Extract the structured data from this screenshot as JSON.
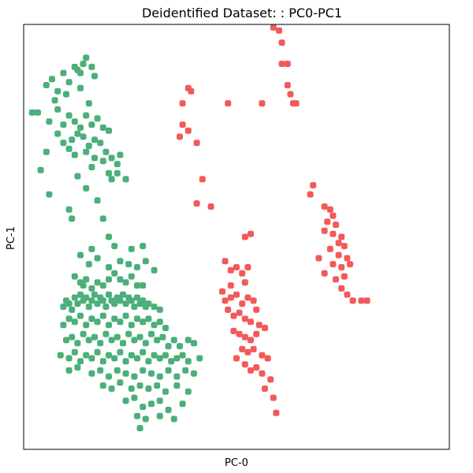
{
  "chart_data": {
    "type": "scatter",
    "title": "Deidentified Dataset: : PC0-PC1",
    "xlabel": "PC-0",
    "ylabel": "PC-1",
    "xlim": [
      -3.0,
      4.5
    ],
    "ylim": [
      -3.0,
      4.0
    ],
    "x_ticks_shown": false,
    "y_ticks_shown": false,
    "grid": false,
    "legend": "none",
    "marker": "rounded-square",
    "series": [
      {
        "color": "#4caf7a",
        "points": [
          [
            -2.6,
            3.0
          ],
          [
            -2.5,
            3.1
          ],
          [
            -2.4,
            2.9
          ],
          [
            -2.3,
            3.2
          ],
          [
            -2.2,
            3.05
          ],
          [
            -2.1,
            3.3
          ],
          [
            -2.05,
            3.25
          ],
          [
            -2.0,
            3.2
          ],
          [
            -1.95,
            3.35
          ],
          [
            -1.9,
            3.45
          ],
          [
            -1.8,
            3.3
          ],
          [
            -1.75,
            3.15
          ],
          [
            -2.45,
            2.75
          ],
          [
            -2.25,
            2.85
          ],
          [
            -2.0,
            2.95
          ],
          [
            -1.85,
            2.7
          ],
          [
            -2.75,
            2.55
          ],
          [
            -2.85,
            2.55
          ],
          [
            -2.55,
            2.4
          ],
          [
            -2.4,
            2.6
          ],
          [
            -2.3,
            2.35
          ],
          [
            -2.2,
            2.5
          ],
          [
            -2.1,
            2.4
          ],
          [
            -2.0,
            2.3
          ],
          [
            -1.9,
            2.5
          ],
          [
            -1.8,
            2.35
          ],
          [
            -1.7,
            2.45
          ],
          [
            -1.6,
            2.3
          ],
          [
            -1.5,
            2.25
          ],
          [
            -2.4,
            2.2
          ],
          [
            -2.3,
            2.05
          ],
          [
            -2.15,
            2.1
          ],
          [
            -2.05,
            2.2
          ],
          [
            -1.95,
            2.15
          ],
          [
            -1.85,
            2.0
          ],
          [
            -1.75,
            2.1
          ],
          [
            -1.65,
            2.05
          ],
          [
            -1.55,
            1.9
          ],
          [
            -2.2,
            1.95
          ],
          [
            -2.1,
            1.85
          ],
          [
            -1.9,
            1.9
          ],
          [
            -1.75,
            1.8
          ],
          [
            -1.6,
            1.75
          ],
          [
            -1.45,
            1.8
          ],
          [
            -1.35,
            1.7
          ],
          [
            -1.3,
            1.85
          ],
          [
            -1.2,
            1.45
          ],
          [
            -2.6,
            1.9
          ],
          [
            -2.7,
            1.6
          ],
          [
            -2.55,
            1.2
          ],
          [
            -2.05,
            1.5
          ],
          [
            -1.9,
            1.3
          ],
          [
            -1.8,
            1.65
          ],
          [
            -1.7,
            1.1
          ],
          [
            -1.5,
            1.55
          ],
          [
            -1.45,
            1.45
          ],
          [
            -1.35,
            1.55
          ],
          [
            -2.2,
            0.95
          ],
          [
            -2.15,
            0.8
          ],
          [
            -1.6,
            0.8
          ],
          [
            -1.5,
            0.5
          ],
          [
            -1.8,
            0.3
          ],
          [
            -2.1,
            -0.15
          ],
          [
            -2.0,
            -0.25
          ],
          [
            -1.95,
            -0.3
          ],
          [
            -1.9,
            -0.2
          ],
          [
            -1.8,
            -0.35
          ],
          [
            -1.7,
            -0.25
          ],
          [
            -1.6,
            -0.3
          ],
          [
            -1.5,
            -0.2
          ],
          [
            -1.4,
            -0.1
          ],
          [
            -1.3,
            -0.2
          ],
          [
            -1.2,
            -0.25
          ],
          [
            -1.1,
            -0.15
          ],
          [
            -1.0,
            -0.3
          ],
          [
            -0.9,
            -0.3
          ],
          [
            -2.3,
            -0.65
          ],
          [
            -2.25,
            -0.55
          ],
          [
            -2.2,
            -0.6
          ],
          [
            -2.15,
            -0.7
          ],
          [
            -2.1,
            -0.5
          ],
          [
            -2.05,
            -0.6
          ],
          [
            -2.0,
            -0.45
          ],
          [
            -1.95,
            -0.55
          ],
          [
            -1.9,
            -0.5
          ],
          [
            -1.85,
            -0.65
          ],
          [
            -1.8,
            -0.55
          ],
          [
            -1.75,
            -0.45
          ],
          [
            -1.7,
            -0.6
          ],
          [
            -1.65,
            -0.5
          ],
          [
            -1.6,
            -0.55
          ],
          [
            -1.55,
            -0.65
          ],
          [
            -1.5,
            -0.45
          ],
          [
            -1.45,
            -0.55
          ],
          [
            -1.4,
            -0.6
          ],
          [
            -1.35,
            -0.5
          ],
          [
            -1.3,
            -0.55
          ],
          [
            -1.25,
            -0.45
          ],
          [
            -1.2,
            -0.6
          ],
          [
            -1.15,
            -0.5
          ],
          [
            -1.1,
            -0.55
          ],
          [
            -1.05,
            -0.65
          ],
          [
            -1.0,
            -0.5
          ],
          [
            -0.95,
            -0.6
          ],
          [
            -0.9,
            -0.55
          ],
          [
            -0.85,
            -0.65
          ],
          [
            -0.8,
            -0.6
          ],
          [
            -0.7,
            -0.65
          ],
          [
            -0.6,
            -0.7
          ],
          [
            -2.3,
            -0.95
          ],
          [
            -2.2,
            -0.85
          ],
          [
            -2.1,
            -0.9
          ],
          [
            -2.0,
            -0.8
          ],
          [
            -1.9,
            -0.95
          ],
          [
            -1.8,
            -0.85
          ],
          [
            -1.7,
            -0.9
          ],
          [
            -1.6,
            -0.8
          ],
          [
            -1.5,
            -0.95
          ],
          [
            -1.4,
            -0.85
          ],
          [
            -1.3,
            -0.9
          ],
          [
            -1.2,
            -0.8
          ],
          [
            -1.1,
            -0.95
          ],
          [
            -1.0,
            -0.85
          ],
          [
            -0.9,
            -0.9
          ],
          [
            -0.8,
            -0.85
          ],
          [
            -0.7,
            -0.95
          ],
          [
            -0.6,
            -0.9
          ],
          [
            -0.5,
            -1.0
          ],
          [
            -2.25,
            -1.2
          ],
          [
            -2.15,
            -1.15
          ],
          [
            -2.05,
            -1.25
          ],
          [
            -1.95,
            -1.1
          ],
          [
            -1.85,
            -1.2
          ],
          [
            -1.75,
            -1.15
          ],
          [
            -1.65,
            -1.25
          ],
          [
            -1.55,
            -1.1
          ],
          [
            -1.45,
            -1.2
          ],
          [
            -1.35,
            -1.15
          ],
          [
            -1.25,
            -1.25
          ],
          [
            -1.15,
            -1.1
          ],
          [
            -1.05,
            -1.2
          ],
          [
            -0.95,
            -1.15
          ],
          [
            -0.85,
            -1.25
          ],
          [
            -0.75,
            -1.1
          ],
          [
            -0.65,
            -1.2
          ],
          [
            -0.55,
            -1.15
          ],
          [
            -0.45,
            -1.3
          ],
          [
            -0.35,
            -1.2
          ],
          [
            -0.25,
            -1.3
          ],
          [
            -0.1,
            -1.2
          ],
          [
            0.0,
            -1.25
          ],
          [
            -2.35,
            -1.45
          ],
          [
            -2.2,
            -1.5
          ],
          [
            -2.1,
            -1.4
          ],
          [
            -2.0,
            -1.55
          ],
          [
            -1.9,
            -1.45
          ],
          [
            -1.8,
            -1.5
          ],
          [
            -1.7,
            -1.4
          ],
          [
            -1.6,
            -1.55
          ],
          [
            -1.5,
            -1.45
          ],
          [
            -1.4,
            -1.5
          ],
          [
            -1.3,
            -1.4
          ],
          [
            -1.2,
            -1.55
          ],
          [
            -1.1,
            -1.45
          ],
          [
            -1.0,
            -1.5
          ],
          [
            -0.9,
            -1.4
          ],
          [
            -0.8,
            -1.55
          ],
          [
            -0.7,
            -1.45
          ],
          [
            -0.6,
            -1.5
          ],
          [
            -0.5,
            -1.45
          ],
          [
            -0.4,
            -1.55
          ],
          [
            -0.3,
            -1.5
          ],
          [
            -0.2,
            -1.45
          ],
          [
            -0.1,
            -1.55
          ],
          [
            0.1,
            -1.5
          ],
          [
            -2.2,
            -1.7
          ],
          [
            -2.05,
            -1.65
          ],
          [
            -1.8,
            -1.75
          ],
          [
            -1.65,
            -1.7
          ],
          [
            -1.5,
            -1.8
          ],
          [
            -1.35,
            -1.7
          ],
          [
            -1.2,
            -1.75
          ],
          [
            -1.05,
            -1.8
          ],
          [
            -0.9,
            -1.7
          ],
          [
            -0.75,
            -1.75
          ],
          [
            -0.6,
            -1.8
          ],
          [
            -0.45,
            -1.7
          ],
          [
            -0.3,
            -1.8
          ],
          [
            -0.15,
            -1.7
          ],
          [
            0.0,
            -1.75
          ],
          [
            -1.6,
            -1.95
          ],
          [
            -1.45,
            -2.0
          ],
          [
            -1.3,
            -1.9
          ],
          [
            -1.1,
            -2.0
          ],
          [
            -0.95,
            -1.95
          ],
          [
            -0.8,
            -2.0
          ],
          [
            -0.65,
            -1.95
          ],
          [
            -0.5,
            -2.05
          ],
          [
            -0.3,
            -1.95
          ],
          [
            -0.1,
            -2.05
          ],
          [
            -1.2,
            -2.2
          ],
          [
            -1.05,
            -2.15
          ],
          [
            -0.9,
            -2.3
          ],
          [
            -0.75,
            -2.25
          ],
          [
            -0.6,
            -2.2
          ],
          [
            -0.45,
            -2.35
          ],
          [
            -0.2,
            -2.25
          ],
          [
            -1.0,
            -2.45
          ],
          [
            -0.85,
            -2.5
          ],
          [
            -0.6,
            -2.45
          ],
          [
            -0.35,
            -2.5
          ],
          [
            -0.95,
            -2.65
          ],
          [
            -1.85,
            0.05
          ],
          [
            -1.7,
            0.15
          ],
          [
            -1.5,
            0.0
          ],
          [
            -1.3,
            0.1
          ],
          [
            -1.15,
            0.05
          ],
          [
            -1.0,
            0.0
          ],
          [
            -0.85,
            0.1
          ],
          [
            -0.7,
            -0.05
          ],
          [
            -1.4,
            0.35
          ],
          [
            -1.1,
            0.3
          ],
          [
            -0.9,
            0.35
          ],
          [
            -2.0,
            0.2
          ]
        ]
      },
      {
        "color": "#f25a5a",
        "points": [
          [
            1.4,
            3.95
          ],
          [
            1.5,
            3.9
          ],
          [
            1.55,
            3.7
          ],
          [
            1.55,
            3.35
          ],
          [
            1.65,
            3.35
          ],
          [
            1.65,
            3.0
          ],
          [
            1.7,
            2.85
          ],
          [
            1.75,
            2.7
          ],
          [
            1.8,
            2.7
          ],
          [
            -0.1,
            2.95
          ],
          [
            -0.05,
            2.9
          ],
          [
            -0.2,
            2.7
          ],
          [
            -0.2,
            2.35
          ],
          [
            -0.1,
            2.25
          ],
          [
            -0.25,
            2.15
          ],
          [
            0.05,
            2.05
          ],
          [
            0.6,
            2.7
          ],
          [
            1.2,
            2.7
          ],
          [
            0.15,
            1.45
          ],
          [
            0.05,
            1.05
          ],
          [
            0.3,
            1.0
          ],
          [
            2.1,
            1.35
          ],
          [
            2.05,
            1.2
          ],
          [
            2.3,
            1.0
          ],
          [
            2.4,
            0.95
          ],
          [
            2.45,
            0.85
          ],
          [
            2.35,
            0.75
          ],
          [
            2.5,
            0.7
          ],
          [
            2.3,
            0.6
          ],
          [
            2.45,
            0.55
          ],
          [
            2.6,
            0.5
          ],
          [
            2.55,
            0.4
          ],
          [
            2.65,
            0.35
          ],
          [
            2.4,
            0.3
          ],
          [
            2.55,
            0.2
          ],
          [
            2.7,
            0.15
          ],
          [
            2.45,
            0.05
          ],
          [
            2.6,
            0.0
          ],
          [
            2.75,
            0.05
          ],
          [
            2.2,
            0.15
          ],
          [
            2.3,
            -0.1
          ],
          [
            2.65,
            -0.15
          ],
          [
            2.5,
            -0.2
          ],
          [
            2.6,
            -0.35
          ],
          [
            2.7,
            -0.45
          ],
          [
            2.8,
            -0.55
          ],
          [
            2.95,
            -0.55
          ],
          [
            3.05,
            -0.55
          ],
          [
            0.9,
            0.5
          ],
          [
            1.0,
            0.55
          ],
          [
            0.55,
            0.1
          ],
          [
            0.65,
            -0.05
          ],
          [
            0.75,
            0.0
          ],
          [
            0.85,
            -0.1
          ],
          [
            0.95,
            0.0
          ],
          [
            0.9,
            -0.25
          ],
          [
            0.65,
            -0.3
          ],
          [
            0.5,
            -0.4
          ],
          [
            0.55,
            -0.55
          ],
          [
            0.65,
            -0.5
          ],
          [
            0.75,
            -0.45
          ],
          [
            0.85,
            -0.6
          ],
          [
            0.95,
            -0.5
          ],
          [
            1.05,
            -0.55
          ],
          [
            1.1,
            -0.7
          ],
          [
            0.6,
            -0.7
          ],
          [
            0.7,
            -0.8
          ],
          [
            0.8,
            -0.75
          ],
          [
            0.9,
            -0.85
          ],
          [
            1.0,
            -0.9
          ],
          [
            1.15,
            -0.95
          ],
          [
            1.25,
            -1.0
          ],
          [
            0.7,
            -1.05
          ],
          [
            0.8,
            -1.1
          ],
          [
            0.9,
            -1.15
          ],
          [
            1.0,
            -1.2
          ],
          [
            1.1,
            -1.1
          ],
          [
            0.85,
            -1.35
          ],
          [
            0.95,
            -1.4
          ],
          [
            1.05,
            -1.35
          ],
          [
            1.2,
            -1.45
          ],
          [
            1.3,
            -1.5
          ],
          [
            0.75,
            -1.5
          ],
          [
            0.9,
            -1.6
          ],
          [
            1.0,
            -1.7
          ],
          [
            1.1,
            -1.65
          ],
          [
            1.2,
            -1.75
          ],
          [
            1.35,
            -1.85
          ],
          [
            1.25,
            -2.0
          ],
          [
            1.4,
            -2.15
          ],
          [
            1.45,
            -2.4
          ]
        ]
      }
    ]
  }
}
